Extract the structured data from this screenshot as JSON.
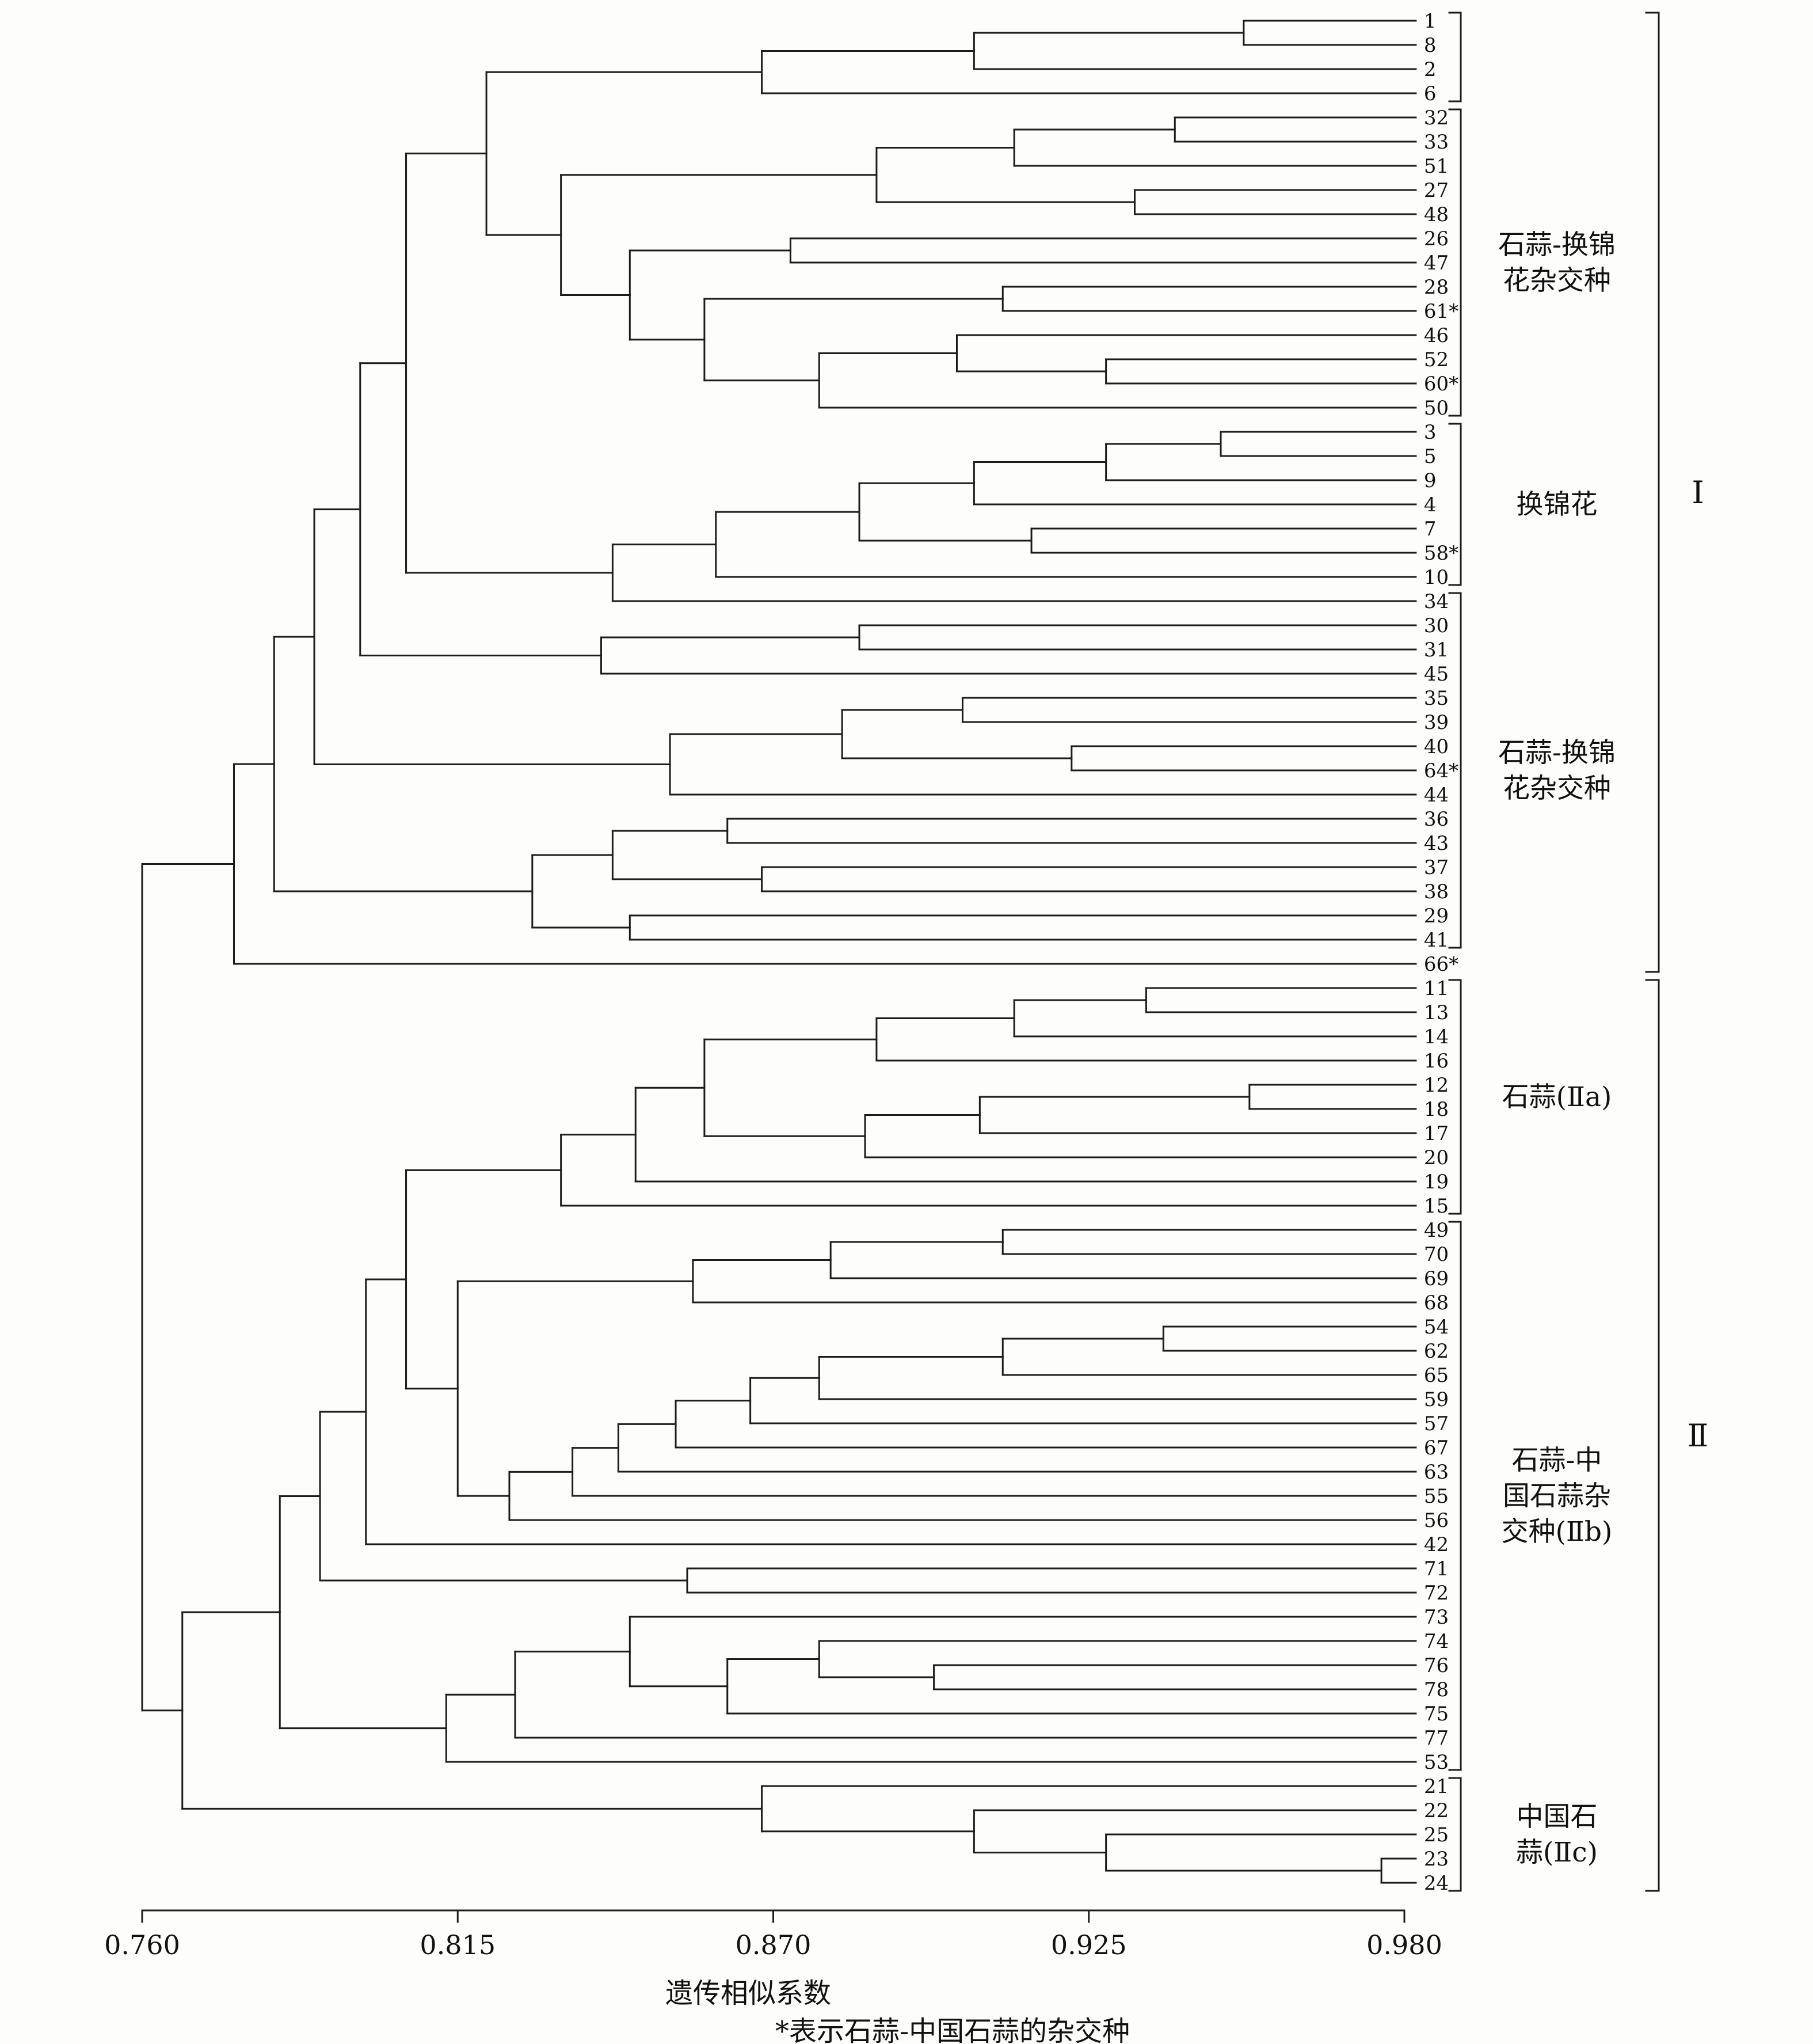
{
  "colors": {
    "line": "#1c1c1c",
    "background": "#fdfdfc",
    "text": "#111111"
  },
  "chart_data": {
    "type": "dendrogram",
    "orientation": "root-left-leaves-right",
    "xlabel": "遗传相似系数",
    "footnote": "*表示石蒜-中国石蒜的杂交种",
    "leaf_count": 78,
    "leaf_tip_value": 0.982,
    "axis": {
      "range": [
        0.76,
        0.98
      ],
      "ticks": [
        0.76,
        0.815,
        0.87,
        0.925,
        0.98
      ],
      "tick_labels": [
        "0.760",
        "0.815",
        "0.870",
        "0.925",
        "0.980"
      ]
    },
    "groups": [
      {
        "lines": [],
        "start": 0,
        "end": 3
      },
      {
        "lines": [
          "石蒜-换锦",
          "花杂交种"
        ],
        "start": 4,
        "end": 16
      },
      {
        "lines": [
          "换锦花"
        ],
        "start": 17,
        "end": 23
      },
      {
        "lines": [
          "石蒜-换锦",
          "花杂交种"
        ],
        "start": 24,
        "end": 38
      },
      {
        "lines": [
          "石蒜(Ⅱa)"
        ],
        "start": 40,
        "end": 49
      },
      {
        "lines": [
          "石蒜-中",
          "国石蒜杂",
          "交种(Ⅱb)"
        ],
        "start": 50,
        "end": 72
      },
      {
        "lines": [
          "中国石",
          "蒜(Ⅱc)"
        ],
        "start": 73,
        "end": 77
      }
    ],
    "major_groups": [
      {
        "label": "Ⅰ",
        "start": 0,
        "end": 39
      },
      {
        "label": "Ⅱ",
        "start": 40,
        "end": 77
      }
    ],
    "tree": {
      "v": 0.76,
      "c": [
        {
          "v": 0.776,
          "c": [
            {
              "v": 0.783,
              "c": [
                {
                  "v": 0.79,
                  "c": [
                    {
                      "v": 0.798,
                      "c": [
                        {
                          "v": 0.806,
                          "c": [
                            {
                              "v": 0.82,
                              "c": [
                                {
                                  "v": 0.868,
                                  "c": [
                                    {
                                      "v": 0.905,
                                      "c": [
                                        {
                                          "v": 0.952,
                                          "c": [
                                            "1",
                                            "8"
                                          ]
                                        },
                                        "2"
                                      ]
                                    },
                                    "6"
                                  ]
                                },
                                {
                                  "v": 0.833,
                                  "c": [
                                    {
                                      "v": 0.888,
                                      "c": [
                                        {
                                          "v": 0.912,
                                          "c": [
                                            {
                                              "v": 0.94,
                                              "c": [
                                                "32",
                                                "33"
                                              ]
                                            },
                                            "51"
                                          ]
                                        },
                                        {
                                          "v": 0.933,
                                          "c": [
                                            "27",
                                            "48"
                                          ]
                                        }
                                      ]
                                    },
                                    {
                                      "v": 0.845,
                                      "c": [
                                        {
                                          "v": 0.873,
                                          "c": [
                                            "26",
                                            "47"
                                          ]
                                        },
                                        {
                                          "v": 0.858,
                                          "c": [
                                            {
                                              "v": 0.91,
                                              "c": [
                                                "28",
                                                "61*"
                                              ]
                                            },
                                            {
                                              "v": 0.878,
                                              "c": [
                                                {
                                                  "v": 0.902,
                                                  "c": [
                                                    "46",
                                                    {
                                                      "v": 0.928,
                                                      "c": [
                                                        "52",
                                                        "60*"
                                                      ]
                                                    }
                                                  ]
                                                },
                                                "50"
                                              ]
                                            }
                                          ]
                                        }
                                      ]
                                    }
                                  ]
                                }
                              ]
                            },
                            {
                              "v": 0.842,
                              "c": [
                                {
                                  "v": 0.86,
                                  "c": [
                                    {
                                      "v": 0.885,
                                      "c": [
                                        {
                                          "v": 0.905,
                                          "c": [
                                            {
                                              "v": 0.928,
                                              "c": [
                                                {
                                                  "v": 0.948,
                                                  "c": [
                                                    "3",
                                                    "5"
                                                  ]
                                                },
                                                "9"
                                              ]
                                            },
                                            "4"
                                          ]
                                        },
                                        {
                                          "v": 0.915,
                                          "c": [
                                            "7",
                                            "58*"
                                          ]
                                        }
                                      ]
                                    },
                                    "10"
                                  ]
                                },
                                "34"
                              ]
                            }
                          ]
                        },
                        {
                          "v": 0.84,
                          "c": [
                            {
                              "v": 0.885,
                              "c": [
                                "30",
                                "31"
                              ]
                            },
                            "45"
                          ]
                        }
                      ]
                    },
                    {
                      "v": 0.852,
                      "c": [
                        {
                          "v": 0.882,
                          "c": [
                            {
                              "v": 0.903,
                              "c": [
                                "35",
                                "39"
                              ]
                            },
                            {
                              "v": 0.922,
                              "c": [
                                "40",
                                "64*"
                              ]
                            }
                          ]
                        },
                        "44"
                      ]
                    }
                  ]
                },
                {
                  "v": 0.828,
                  "c": [
                    {
                      "v": 0.842,
                      "c": [
                        {
                          "v": 0.862,
                          "c": [
                            "36",
                            "43"
                          ]
                        },
                        {
                          "v": 0.868,
                          "c": [
                            "37",
                            "38"
                          ]
                        }
                      ]
                    },
                    {
                      "v": 0.845,
                      "c": [
                        "29",
                        "41"
                      ]
                    }
                  ]
                }
              ]
            },
            "66*"
          ]
        },
        {
          "v": 0.767,
          "c": [
            {
              "v": 0.784,
              "c": [
                {
                  "v": 0.791,
                  "c": [
                    {
                      "v": 0.799,
                      "c": [
                        {
                          "v": 0.806,
                          "c": [
                            {
                              "v": 0.833,
                              "c": [
                                {
                                  "v": 0.846,
                                  "c": [
                                    {
                                      "v": 0.858,
                                      "c": [
                                        {
                                          "v": 0.888,
                                          "c": [
                                            {
                                              "v": 0.912,
                                              "c": [
                                                {
                                                  "v": 0.935,
                                                  "c": [
                                                    "11",
                                                    "13"
                                                  ]
                                                },
                                                "14"
                                              ]
                                            },
                                            "16"
                                          ]
                                        },
                                        {
                                          "v": 0.886,
                                          "c": [
                                            {
                                              "v": 0.906,
                                              "c": [
                                                {
                                                  "v": 0.953,
                                                  "c": [
                                                    "12",
                                                    "18"
                                                  ]
                                                },
                                                "17"
                                              ]
                                            },
                                            "20"
                                          ]
                                        }
                                      ]
                                    },
                                    "19"
                                  ]
                                },
                                "15"
                              ]
                            },
                            {
                              "v": 0.815,
                              "c": [
                                {
                                  "v": 0.856,
                                  "c": [
                                    {
                                      "v": 0.88,
                                      "c": [
                                        {
                                          "v": 0.91,
                                          "c": [
                                            "49",
                                            "70"
                                          ]
                                        },
                                        "69"
                                      ]
                                    },
                                    "68"
                                  ]
                                },
                                {
                                  "v": 0.824,
                                  "c": [
                                    {
                                      "v": 0.835,
                                      "c": [
                                        {
                                          "v": 0.843,
                                          "c": [
                                            {
                                              "v": 0.853,
                                              "c": [
                                                {
                                                  "v": 0.866,
                                                  "c": [
                                                    {
                                                      "v": 0.878,
                                                      "c": [
                                                        {
                                                          "v": 0.91,
                                                          "c": [
                                                            {
                                                              "v": 0.938,
                                                              "c": [
                                                                "54",
                                                                "62"
                                                              ]
                                                            },
                                                            "65"
                                                          ]
                                                        },
                                                        "59"
                                                      ]
                                                    },
                                                    "57"
                                                  ]
                                                },
                                                "67"
                                              ]
                                            },
                                            "63"
                                          ]
                                        },
                                        "55"
                                      ]
                                    },
                                    "56"
                                  ]
                                }
                              ]
                            }
                          ]
                        },
                        "42"
                      ]
                    },
                    {
                      "v": 0.855,
                      "c": [
                        "71",
                        "72"
                      ]
                    }
                  ]
                },
                {
                  "v": 0.813,
                  "c": [
                    {
                      "v": 0.825,
                      "c": [
                        {
                          "v": 0.845,
                          "c": [
                            "73",
                            {
                              "v": 0.862,
                              "c": [
                                {
                                  "v": 0.878,
                                  "c": [
                                    "74",
                                    {
                                      "v": 0.898,
                                      "c": [
                                        "76",
                                        "78"
                                      ]
                                    }
                                  ]
                                },
                                "75"
                              ]
                            }
                          ]
                        },
                        "77"
                      ]
                    },
                    "53"
                  ]
                }
              ]
            },
            {
              "v": 0.868,
              "c": [
                "21",
                {
                  "v": 0.905,
                  "c": [
                    "22",
                    {
                      "v": 0.928,
                      "c": [
                        "25",
                        {
                          "v": 0.976,
                          "c": [
                            "23",
                            "24"
                          ]
                        }
                      ]
                    }
                  ]
                }
              ]
            }
          ]
        }
      ]
    }
  }
}
